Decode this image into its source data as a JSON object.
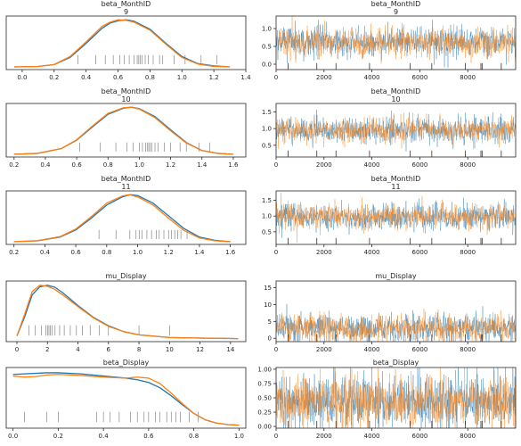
{
  "colors": {
    "chain1": "#1f77b4",
    "chain2": "#ff7f0e",
    "rug": "#000000",
    "axis": "#262626"
  },
  "chart_data": [
    {
      "type": "line",
      "panel": "density",
      "title": "beta_MonthID",
      "subtitle": "9",
      "xlim": [
        -0.1,
        1.4
      ],
      "xticks": [
        0.0,
        0.2,
        0.4,
        0.6,
        0.8,
        1.0,
        1.2,
        1.4
      ],
      "xtick_labels": [
        "0.0",
        "0.2",
        "0.4",
        "0.6",
        "0.8",
        "1.0",
        "1.2",
        "1.4"
      ],
      "series": [
        {
          "x": [
            -0.05,
            0.1,
            0.2,
            0.3,
            0.4,
            0.5,
            0.55,
            0.6,
            0.65,
            0.7,
            0.8,
            0.9,
            1.0,
            1.1,
            1.2,
            1.3
          ],
          "y": [
            0.0,
            0.01,
            0.05,
            0.2,
            0.5,
            0.82,
            0.93,
            0.98,
            1.0,
            0.97,
            0.8,
            0.5,
            0.22,
            0.07,
            0.02,
            0.0
          ]
        },
        {
          "x": [
            -0.05,
            0.1,
            0.2,
            0.3,
            0.4,
            0.5,
            0.55,
            0.6,
            0.65,
            0.7,
            0.8,
            0.9,
            1.0,
            1.1,
            1.2,
            1.3
          ],
          "y": [
            0.0,
            0.01,
            0.05,
            0.22,
            0.53,
            0.86,
            0.95,
            1.0,
            0.99,
            0.95,
            0.78,
            0.48,
            0.2,
            0.06,
            0.01,
            0.0
          ]
        }
      ],
      "rug": [
        0.35,
        0.46,
        0.52,
        0.57,
        0.61,
        0.64,
        0.67,
        0.7,
        0.72,
        0.73,
        0.74,
        0.75,
        0.77,
        0.79,
        0.82,
        0.86,
        0.88,
        0.95,
        1.02,
        1.12,
        1.22
      ]
    },
    {
      "type": "line",
      "panel": "trace",
      "title": "beta_MonthID",
      "subtitle": "9",
      "xlim": [
        0,
        10000
      ],
      "ylim": [
        -0.15,
        1.35
      ],
      "xticks": [
        0,
        2000,
        4000,
        6000,
        8000
      ],
      "xtick_labels": [
        "0",
        "2000",
        "4000",
        "6000",
        "8000"
      ],
      "yticks": [
        0.0,
        0.5,
        1.0
      ],
      "ytick_labels": [
        "0.0",
        "0.5",
        "1.0"
      ],
      "trace": {
        "n_draws": 10000,
        "mean": 0.62,
        "sd": 0.2
      },
      "rug": [
        500,
        1700,
        2500,
        3900,
        5600,
        6500,
        7900,
        8550,
        8600,
        9400
      ]
    },
    {
      "type": "line",
      "panel": "density",
      "title": "beta_MonthID",
      "subtitle": "10",
      "xlim": [
        0.15,
        1.68
      ],
      "xticks": [
        0.2,
        0.4,
        0.6,
        0.8,
        1.0,
        1.2,
        1.4,
        1.6
      ],
      "xtick_labels": [
        "0.2",
        "0.4",
        "0.6",
        "0.8",
        "1.0",
        "1.2",
        "1.4",
        "1.6"
      ],
      "series": [
        {
          "x": [
            0.2,
            0.35,
            0.5,
            0.6,
            0.7,
            0.8,
            0.9,
            0.95,
            1.0,
            1.1,
            1.2,
            1.3,
            1.4,
            1.5,
            1.6
          ],
          "y": [
            0.0,
            0.02,
            0.12,
            0.3,
            0.58,
            0.85,
            0.98,
            1.0,
            0.97,
            0.8,
            0.52,
            0.25,
            0.08,
            0.02,
            0.0
          ]
        },
        {
          "x": [
            0.2,
            0.35,
            0.5,
            0.6,
            0.7,
            0.8,
            0.9,
            0.95,
            1.0,
            1.1,
            1.2,
            1.3,
            1.4,
            1.5,
            1.6
          ],
          "y": [
            0.0,
            0.02,
            0.12,
            0.31,
            0.6,
            0.87,
            0.99,
            1.0,
            0.96,
            0.78,
            0.5,
            0.24,
            0.08,
            0.02,
            0.0
          ]
        }
      ],
      "rug": [
        0.62,
        0.75,
        0.85,
        0.92,
        0.96,
        1.0,
        1.02,
        1.04,
        1.05,
        1.06,
        1.07,
        1.08,
        1.1,
        1.12,
        1.16,
        1.2,
        1.26,
        1.3,
        1.38,
        1.45
      ]
    },
    {
      "type": "line",
      "panel": "trace",
      "title": "beta_MonthID",
      "subtitle": "10",
      "xlim": [
        0,
        10000
      ],
      "ylim": [
        0.15,
        1.75
      ],
      "xticks": [
        0,
        2000,
        4000,
        6000,
        8000
      ],
      "xtick_labels": [
        "0",
        "2000",
        "4000",
        "6000",
        "8000"
      ],
      "yticks": [
        0.5,
        1.0,
        1.5
      ],
      "ytick_labels": [
        "0.5",
        "1.0",
        "1.5"
      ],
      "trace": {
        "n_draws": 10000,
        "mean": 0.95,
        "sd": 0.19
      },
      "rug": [
        500,
        1700,
        2500,
        3900,
        5600,
        6500,
        7900,
        8550,
        8600,
        9400
      ]
    },
    {
      "type": "line",
      "panel": "density",
      "title": "beta_MonthID",
      "subtitle": "11",
      "xlim": [
        0.15,
        1.7
      ],
      "xticks": [
        0.2,
        0.4,
        0.6,
        0.8,
        1.0,
        1.2,
        1.4,
        1.6
      ],
      "xtick_labels": [
        "0.2",
        "0.4",
        "0.6",
        "0.8",
        "1.0",
        "1.2",
        "1.4",
        "1.6"
      ],
      "series": [
        {
          "x": [
            0.2,
            0.35,
            0.5,
            0.6,
            0.7,
            0.8,
            0.9,
            0.95,
            1.0,
            1.1,
            1.2,
            1.3,
            1.4,
            1.5,
            1.6
          ],
          "y": [
            0.0,
            0.02,
            0.1,
            0.25,
            0.5,
            0.78,
            0.95,
            1.0,
            0.98,
            0.82,
            0.55,
            0.28,
            0.1,
            0.03,
            0.0
          ]
        },
        {
          "x": [
            0.2,
            0.35,
            0.5,
            0.6,
            0.7,
            0.8,
            0.9,
            0.95,
            1.0,
            1.1,
            1.2,
            1.3,
            1.4,
            1.5,
            1.6
          ],
          "y": [
            0.0,
            0.02,
            0.11,
            0.27,
            0.53,
            0.82,
            0.97,
            1.0,
            0.95,
            0.78,
            0.5,
            0.24,
            0.08,
            0.02,
            0.0
          ]
        }
      ],
      "rug": [
        0.75,
        0.86,
        0.95,
        0.99,
        1.01,
        1.03,
        1.06,
        1.09,
        1.12,
        1.14,
        1.17,
        1.2,
        1.22,
        1.24,
        1.26,
        1.28,
        1.32
      ]
    },
    {
      "type": "line",
      "panel": "trace",
      "title": "beta_MonthID",
      "subtitle": "11",
      "xlim": [
        0,
        10000
      ],
      "ylim": [
        0.1,
        1.8
      ],
      "xticks": [
        0,
        2000,
        4000,
        6000,
        8000
      ],
      "xtick_labels": [
        "0",
        "2000",
        "4000",
        "6000",
        "8000"
      ],
      "yticks": [
        0.5,
        1.0,
        1.5
      ],
      "ytick_labels": [
        "0.5",
        "1.0",
        "1.5"
      ],
      "trace": {
        "n_draws": 10000,
        "mean": 0.98,
        "sd": 0.2
      },
      "rug": [
        500,
        1700,
        2500,
        3900,
        5600,
        6500,
        7900,
        8550,
        8600,
        9400
      ]
    },
    {
      "type": "line",
      "panel": "density",
      "title": "mu_Display",
      "subtitle": "",
      "xlim": [
        -0.7,
        15
      ],
      "xticks": [
        0,
        2,
        4,
        6,
        8,
        10,
        12,
        14
      ],
      "xtick_labels": [
        "0",
        "2",
        "4",
        "6",
        "8",
        "10",
        "12",
        "14"
      ],
      "series": [
        {
          "x": [
            0,
            0.5,
            1,
            1.5,
            2,
            2.5,
            3,
            4,
            5,
            6,
            7,
            8,
            10,
            12,
            14.5
          ],
          "y": [
            0.05,
            0.4,
            0.82,
            0.97,
            1.0,
            0.96,
            0.86,
            0.62,
            0.4,
            0.24,
            0.13,
            0.07,
            0.02,
            0.01,
            0.0
          ]
        },
        {
          "x": [
            0,
            0.5,
            1,
            1.5,
            2,
            2.5,
            3,
            4,
            5,
            6,
            7,
            8,
            10,
            12,
            14.5
          ],
          "y": [
            0.05,
            0.45,
            0.88,
            1.0,
            0.98,
            0.92,
            0.82,
            0.6,
            0.39,
            0.23,
            0.13,
            0.07,
            0.02,
            0.01,
            0.0
          ]
        }
      ],
      "rug": [
        0.8,
        1.2,
        1.6,
        1.9,
        2.0,
        2.1,
        2.2,
        2.3,
        2.5,
        2.8,
        3.1,
        3.5,
        3.9,
        4.3,
        4.8,
        5.4,
        6.0,
        8.0,
        10.0
      ]
    },
    {
      "type": "line",
      "panel": "trace",
      "title": "mu_Display",
      "subtitle": "",
      "xlim": [
        0,
        10000
      ],
      "ylim": [
        -1,
        17
      ],
      "xticks": [
        0,
        2000,
        4000,
        6000,
        8000
      ],
      "xtick_labels": [
        "0",
        "2000",
        "4000",
        "6000",
        "8000"
      ],
      "yticks": [
        0,
        5,
        10,
        15
      ],
      "ytick_labels": [
        "0",
        "5",
        "10",
        "15"
      ],
      "trace": {
        "n_draws": 10000,
        "mean": 3.0,
        "sd": 2.0
      },
      "rug": [
        500,
        1700,
        2500,
        3900,
        5600,
        6500,
        7900,
        8550,
        8600,
        9400
      ]
    },
    {
      "type": "line",
      "panel": "density",
      "title": "beta_Display",
      "subtitle": "",
      "xlim": [
        -0.03,
        1.03
      ],
      "xticks": [
        0.0,
        0.2,
        0.4,
        0.6,
        0.8,
        1.0
      ],
      "xtick_labels": [
        "0.0",
        "0.2",
        "0.4",
        "0.6",
        "0.8",
        "1.0"
      ],
      "series": [
        {
          "x": [
            0.0,
            0.05,
            0.1,
            0.15,
            0.2,
            0.3,
            0.4,
            0.5,
            0.55,
            0.6,
            0.65,
            0.7,
            0.75,
            0.8,
            0.85,
            0.9,
            0.95,
            1.0
          ],
          "y": [
            0.95,
            0.96,
            0.97,
            0.98,
            0.98,
            0.96,
            0.92,
            0.88,
            0.85,
            0.8,
            0.7,
            0.55,
            0.38,
            0.22,
            0.1,
            0.04,
            0.01,
            0.0
          ]
        },
        {
          "x": [
            0.0,
            0.05,
            0.1,
            0.15,
            0.2,
            0.3,
            0.4,
            0.5,
            0.55,
            0.6,
            0.65,
            0.7,
            0.75,
            0.8,
            0.85,
            0.9,
            0.95,
            1.0
          ],
          "y": [
            0.92,
            0.9,
            0.91,
            0.94,
            0.95,
            0.93,
            0.9,
            0.88,
            0.9,
            0.88,
            0.78,
            0.6,
            0.4,
            0.22,
            0.1,
            0.04,
            0.01,
            0.0
          ]
        }
      ],
      "rug": [
        0.05,
        0.15,
        0.2,
        0.37,
        0.4,
        0.43,
        0.47,
        0.52,
        0.55,
        0.58,
        0.6,
        0.63,
        0.65,
        0.68,
        0.7,
        0.72,
        0.74,
        0.78,
        0.82
      ]
    },
    {
      "type": "line",
      "panel": "trace",
      "title": "beta_Display",
      "subtitle": "",
      "xlim": [
        0,
        10000
      ],
      "ylim": [
        -0.03,
        1.03
      ],
      "xticks": [
        0,
        2000,
        4000,
        6000,
        8000
      ],
      "xtick_labels": [
        "0",
        "2000",
        "4000",
        "6000",
        "8000"
      ],
      "yticks": [
        0.0,
        0.25,
        0.5,
        0.75,
        1.0
      ],
      "ytick_labels": [
        "0.00",
        "0.25",
        "0.50",
        "0.75",
        "1.00"
      ],
      "trace": {
        "n_draws": 10000,
        "mean": 0.43,
        "sd": 0.23
      },
      "rug": [
        500,
        1700,
        2500,
        3900,
        5600,
        6500,
        7900,
        8550,
        8600,
        9400
      ]
    }
  ]
}
